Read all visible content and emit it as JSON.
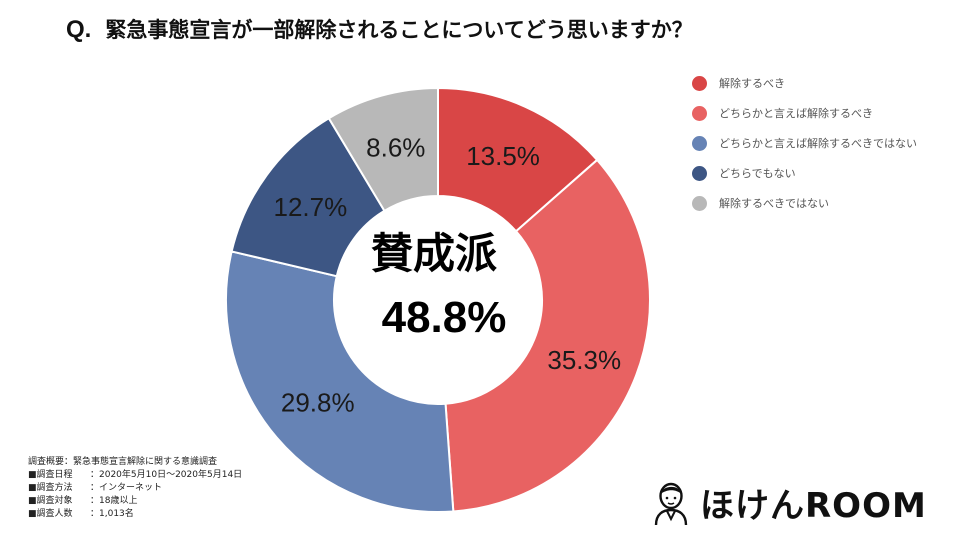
{
  "title": {
    "prefix": "Q.",
    "text": "緊急事態宣言が一部解除されることについてどう思いますか？"
  },
  "chart_data": {
    "type": "pie",
    "categories": [
      "解除するべき",
      "どちらかと言えば解除するべき",
      "どちらかと言えば解除するべきではない",
      "どちらでもない",
      "解除するべきではない"
    ],
    "values": [
      13.5,
      35.3,
      29.8,
      12.7,
      8.6
    ],
    "labels": [
      "13.5%",
      "35.3%",
      "29.8%",
      "12.7%",
      "8.6%"
    ],
    "colors": [
      "#d94646",
      "#e86262",
      "#6683b5",
      "#3d5684",
      "#b8b8b8"
    ],
    "donut": true,
    "legend_position": "top-right",
    "center_label": {
      "line1": "賛成派",
      "line2": "48.8%"
    }
  },
  "legend": [
    {
      "label": "解除するべき",
      "color": "#d94646"
    },
    {
      "label": "どちらかと言えば解除するべき",
      "color": "#e86262"
    },
    {
      "label": "どちらかと言えば解除するべきではない",
      "color": "#6683b5"
    },
    {
      "label": "どちらでもない",
      "color": "#3d5684"
    },
    {
      "label": "解除するべきではない",
      "color": "#b8b8b8"
    }
  ],
  "footnote": {
    "heading": "調査概要：緊急事態宣言解除に関する意識調査",
    "rows": [
      {
        "key": "■調査日程",
        "value": "：2020年5月10日～2020年5月14日"
      },
      {
        "key": "■調査方法",
        "value": "：インターネット"
      },
      {
        "key": "■調査対象",
        "value": "：18歳以上"
      },
      {
        "key": "■調査人数",
        "value": "：1,013名"
      }
    ]
  },
  "logo": {
    "text": "ほけんROOM",
    "icon": "person-avatar-icon"
  }
}
